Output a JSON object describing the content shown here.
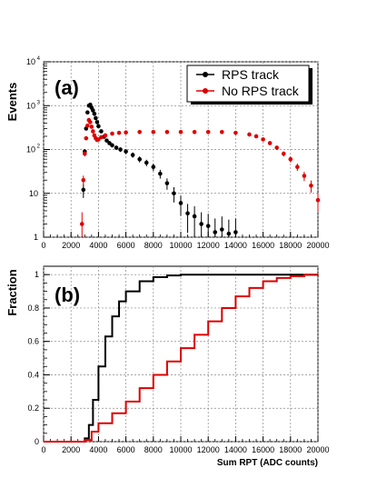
{
  "chart_data": [
    {
      "type": "scatter",
      "panel_label": "(a)",
      "ylabel": "Events",
      "xlabel": "",
      "xlim": [
        0,
        20000
      ],
      "ylim": [
        1,
        10000
      ],
      "yscale": "log",
      "grid": true,
      "legend_position": "top-right",
      "x_ticks": [
        "0",
        "2000",
        "4000",
        "6000",
        "8000",
        "10000",
        "12000",
        "14000",
        "16000",
        "18000",
        "20000"
      ],
      "y_ticks": [
        {
          "value": 1,
          "base": "1",
          "exp": ""
        },
        {
          "value": 10,
          "base": "10",
          "exp": ""
        },
        {
          "value": 100,
          "base": "10",
          "exp": "2"
        },
        {
          "value": 1000,
          "base": "10",
          "exp": "3"
        },
        {
          "value": 10000,
          "base": "10",
          "exp": "4"
        }
      ],
      "series": [
        {
          "name": "RPS track",
          "color": "#000000",
          "x": [
            2900,
            3000,
            3100,
            3200,
            3300,
            3400,
            3500,
            3600,
            3700,
            3800,
            3900,
            4000,
            4200,
            4400,
            4600,
            4800,
            5000,
            5300,
            5600,
            6000,
            6500,
            7000,
            7500,
            8000,
            8500,
            9000,
            9500,
            10000,
            10500,
            11000,
            11500,
            12000,
            12500,
            13000,
            13500,
            14000
          ],
          "y": [
            12,
            90,
            300,
            700,
            1000,
            1050,
            900,
            780,
            650,
            520,
            420,
            340,
            260,
            195,
            160,
            140,
            125,
            110,
            100,
            90,
            75,
            60,
            50,
            40,
            28,
            17,
            10,
            6,
            3.5,
            3,
            2,
            1.8,
            1.3,
            1.5,
            1.2,
            1.3
          ]
        },
        {
          "name": "No RPS track",
          "color": "#dd0000",
          "x": [
            2800,
            2900,
            3000,
            3100,
            3200,
            3300,
            3400,
            3500,
            3600,
            3700,
            3800,
            3900,
            4000,
            4200,
            4500,
            5000,
            5500,
            6000,
            7000,
            8000,
            9000,
            10000,
            11000,
            12000,
            13000,
            14000,
            15000,
            15500,
            16000,
            16500,
            17000,
            17500,
            18000,
            18500,
            19000,
            19500,
            20000
          ],
          "y": [
            2,
            20,
            80,
            180,
            350,
            470,
            420,
            330,
            260,
            210,
            180,
            165,
            170,
            190,
            210,
            230,
            240,
            245,
            250,
            250,
            250,
            250,
            250,
            250,
            250,
            240,
            220,
            200,
            170,
            140,
            110,
            80,
            60,
            40,
            25,
            15,
            7
          ]
        }
      ]
    },
    {
      "type": "line",
      "panel_label": "(b)",
      "ylabel": "Fraction",
      "xlabel": "Sum RPT (ADC counts)",
      "xlim": [
        0,
        20000
      ],
      "ylim": [
        0,
        1.05
      ],
      "grid": true,
      "x_ticks": [
        "0",
        "2000",
        "4000",
        "6000",
        "8000",
        "10000",
        "12000",
        "14000",
        "16000",
        "18000",
        "20000"
      ],
      "y_ticks": [
        "0",
        "0.2",
        "0.4",
        "0.6",
        "0.8",
        "1"
      ],
      "series": [
        {
          "name": "RPS track",
          "color": "#000000",
          "x": [
            0,
            2800,
            3000,
            3300,
            3600,
            4000,
            4500,
            5000,
            5500,
            6000,
            7000,
            8000,
            9000,
            10000,
            12000,
            20000
          ],
          "y": [
            0,
            0,
            0.02,
            0.1,
            0.25,
            0.45,
            0.63,
            0.75,
            0.84,
            0.9,
            0.96,
            0.985,
            0.995,
            1.0,
            1.0,
            1.0
          ]
        },
        {
          "name": "No RPS track",
          "color": "#dd0000",
          "x": [
            0,
            2800,
            3000,
            3500,
            4000,
            5000,
            6000,
            7000,
            8000,
            9000,
            10000,
            11000,
            12000,
            13000,
            14000,
            15000,
            16000,
            17000,
            18000,
            19000,
            20000
          ],
          "y": [
            0,
            0,
            0.01,
            0.06,
            0.11,
            0.17,
            0.24,
            0.32,
            0.4,
            0.48,
            0.56,
            0.64,
            0.72,
            0.8,
            0.87,
            0.92,
            0.96,
            0.98,
            0.99,
            0.998,
            1.0
          ]
        }
      ]
    }
  ]
}
